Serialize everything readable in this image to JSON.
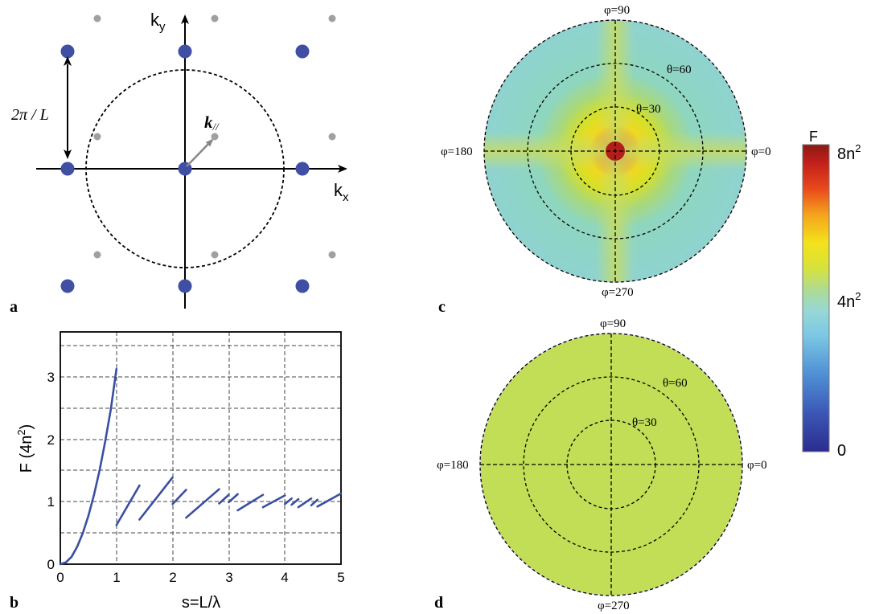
{
  "panels": {
    "a": {
      "letter": "a",
      "kx_label": "k",
      "kx_sub": "x",
      "ky_label": "k",
      "ky_sub": "y",
      "period_label": "2π / L",
      "kpar_label": "k",
      "kpar_sub": "//",
      "colors": {
        "large_dot": "#3f4fa3",
        "small_dot": "#a0a0a0",
        "arrow": "#888888"
      }
    },
    "b": {
      "letter": "b"
    },
    "c": {
      "letter": "c",
      "labels": {
        "phi90": "φ=90",
        "phi180": "φ=180",
        "phi0": "φ=0",
        "phi270": "φ=270",
        "theta60": "θ=60",
        "theta30": "θ=30"
      }
    },
    "d": {
      "letter": "d",
      "labels": {
        "phi90": "φ=90",
        "phi180": "φ=180",
        "phi0": "φ=0",
        "phi270": "φ=270",
        "theta60": "θ=60",
        "theta30": "θ=30"
      }
    },
    "colorbar": {
      "title": "F",
      "top_label": "8n",
      "top_sup": "2",
      "mid_label": "4n",
      "mid_sup": "2",
      "bottom_label": "0"
    }
  },
  "chart_data": {
    "type": "line",
    "xlabel": "s=L/λ",
    "ylabel": "F (4n",
    "ylabel_sup": "2",
    "ylabel_end": ")",
    "xlim": [
      0,
      5
    ],
    "ylim": [
      0,
      3.75
    ],
    "xticks": [
      "0",
      "1",
      "2",
      "3",
      "4",
      "5"
    ],
    "yticks": [
      "0",
      "1",
      "2",
      "3"
    ],
    "grid": true,
    "line_color": "#3a4fa0",
    "series": [
      {
        "x": [
          0,
          0.1,
          0.2,
          0.3,
          0.4,
          0.5,
          0.6,
          0.7,
          0.8,
          0.9,
          1.0
        ],
        "y": [
          0,
          0.03,
          0.12,
          0.28,
          0.5,
          0.78,
          1.12,
          1.52,
          1.98,
          2.5,
          3.15
        ]
      },
      {
        "x": [
          1.0,
          1.41
        ],
        "y": [
          0.63,
          1.27
        ]
      },
      {
        "x": [
          1.41,
          2.0
        ],
        "y": [
          0.72,
          1.4
        ]
      },
      {
        "x": [
          2.0,
          2.24
        ],
        "y": [
          0.97,
          1.2
        ]
      },
      {
        "x": [
          2.24,
          2.83
        ],
        "y": [
          0.75,
          1.21
        ]
      },
      {
        "x": [
          2.83,
          3.0
        ],
        "y": [
          0.98,
          1.12
        ]
      },
      {
        "x": [
          3.0,
          3.16
        ],
        "y": [
          1.0,
          1.13
        ]
      },
      {
        "x": [
          3.16,
          3.61
        ],
        "y": [
          0.87,
          1.12
        ]
      },
      {
        "x": [
          3.61,
          4.0
        ],
        "y": [
          0.92,
          1.11
        ]
      },
      {
        "x": [
          4.0,
          4.12
        ],
        "y": [
          0.97,
          1.06
        ]
      },
      {
        "x": [
          4.12,
          4.24
        ],
        "y": [
          0.96,
          1.05
        ]
      },
      {
        "x": [
          4.24,
          4.47
        ],
        "y": [
          0.92,
          1.06
        ]
      },
      {
        "x": [
          4.47,
          4.58
        ],
        "y": [
          0.95,
          1.04
        ]
      },
      {
        "x": [
          4.58,
          5.0
        ],
        "y": [
          0.93,
          1.14
        ]
      }
    ]
  }
}
